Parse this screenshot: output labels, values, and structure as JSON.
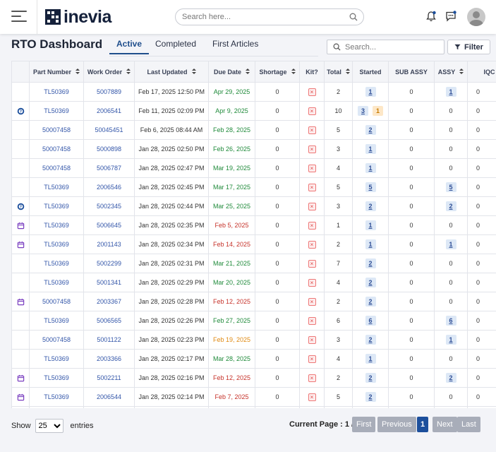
{
  "header": {
    "brand": "inevia",
    "search_placeholder": "Search here...",
    "icons": [
      "menu-icon",
      "search-icon",
      "bell-icon",
      "chat-icon",
      "avatar"
    ]
  },
  "page": {
    "title": "RTO Dashboard",
    "tabs": [
      {
        "label": "Active",
        "active": true
      },
      {
        "label": "Completed",
        "active": false
      },
      {
        "label": "First Articles",
        "active": false
      }
    ],
    "search_placeholder": "Search...",
    "filter_label": "Filter"
  },
  "table": {
    "columns": [
      "",
      "Part Number",
      "Work Order",
      "Last Updated",
      "Due Date",
      "Shortage",
      "Kit?",
      "Total",
      "Started",
      "SUB ASSY",
      "ASSY",
      "IQC"
    ],
    "rows": [
      {
        "icon": "",
        "part": "TL50369",
        "wo": "5007889",
        "updated": "Feb 17, 2025 12:50 PM",
        "due": "Apr 29, 2025",
        "due_status": "green",
        "shortage": "0",
        "total": "2",
        "started": [
          "1"
        ],
        "sub_assy": "0",
        "assy": "1",
        "assy_badge": true,
        "iqc": "0"
      },
      {
        "icon": "help",
        "part": "TL50369",
        "wo": "2006541",
        "updated": "Feb 11, 2025 02:09 PM",
        "due": "Apr 9, 2025",
        "due_status": "green",
        "shortage": "0",
        "total": "10",
        "started": [
          "3",
          "1"
        ],
        "sub_assy": "0",
        "assy": "0",
        "assy_badge": false,
        "iqc": "0"
      },
      {
        "icon": "",
        "part": "50007458",
        "wo": "50045451",
        "updated": "Feb 6, 2025 08:44 AM",
        "due": "Feb 28, 2025",
        "due_status": "green",
        "shortage": "0",
        "total": "5",
        "started": [
          "2"
        ],
        "sub_assy": "0",
        "assy": "0",
        "assy_badge": false,
        "iqc": "0"
      },
      {
        "icon": "",
        "part": "50007458",
        "wo": "5000898",
        "updated": "Jan 28, 2025 02:50 PM",
        "due": "Feb 26, 2025",
        "due_status": "green",
        "shortage": "0",
        "total": "3",
        "started": [
          "1"
        ],
        "sub_assy": "0",
        "assy": "0",
        "assy_badge": false,
        "iqc": "0"
      },
      {
        "icon": "",
        "part": "50007458",
        "wo": "5006787",
        "updated": "Jan 28, 2025 02:47 PM",
        "due": "Mar 19, 2025",
        "due_status": "green",
        "shortage": "0",
        "total": "4",
        "started": [
          "1"
        ],
        "sub_assy": "0",
        "assy": "0",
        "assy_badge": false,
        "iqc": "0"
      },
      {
        "icon": "",
        "part": "TL50369",
        "wo": "2006546",
        "updated": "Jan 28, 2025 02:45 PM",
        "due": "Mar 17, 2025",
        "due_status": "green",
        "shortage": "0",
        "total": "5",
        "started": [
          "5"
        ],
        "sub_assy": "0",
        "assy": "5",
        "assy_badge": true,
        "iqc": "0"
      },
      {
        "icon": "help",
        "part": "TL50369",
        "wo": "5002345",
        "updated": "Jan 28, 2025 02:44 PM",
        "due": "Mar 25, 2025",
        "due_status": "green",
        "shortage": "0",
        "total": "3",
        "started": [
          "2"
        ],
        "sub_assy": "0",
        "assy": "2",
        "assy_badge": true,
        "iqc": "0"
      },
      {
        "icon": "calendar",
        "part": "TL50369",
        "wo": "5006645",
        "updated": "Jan 28, 2025 02:35 PM",
        "due": "Feb 5, 2025",
        "due_status": "red",
        "shortage": "0",
        "total": "1",
        "started": [
          "1"
        ],
        "sub_assy": "0",
        "assy": "0",
        "assy_badge": false,
        "iqc": "0"
      },
      {
        "icon": "calendar",
        "part": "TL50369",
        "wo": "2001143",
        "updated": "Jan 28, 2025 02:34 PM",
        "due": "Feb 14, 2025",
        "due_status": "red",
        "shortage": "0",
        "total": "2",
        "started": [
          "1"
        ],
        "sub_assy": "0",
        "assy": "1",
        "assy_badge": true,
        "iqc": "0"
      },
      {
        "icon": "",
        "part": "TL50369",
        "wo": "5002299",
        "updated": "Jan 28, 2025 02:31 PM",
        "due": "Mar 21, 2025",
        "due_status": "green",
        "shortage": "0",
        "total": "7",
        "started": [
          "2"
        ],
        "sub_assy": "0",
        "assy": "0",
        "assy_badge": false,
        "iqc": "0"
      },
      {
        "icon": "",
        "part": "TL50369",
        "wo": "5001341",
        "updated": "Jan 28, 2025 02:29 PM",
        "due": "Mar 20, 2025",
        "due_status": "green",
        "shortage": "0",
        "total": "4",
        "started": [
          "2"
        ],
        "sub_assy": "0",
        "assy": "0",
        "assy_badge": false,
        "iqc": "0"
      },
      {
        "icon": "calendar",
        "part": "50007458",
        "wo": "2003367",
        "updated": "Jan 28, 2025 02:28 PM",
        "due": "Feb 12, 2025",
        "due_status": "red",
        "shortage": "0",
        "total": "2",
        "started": [
          "2"
        ],
        "sub_assy": "0",
        "assy": "0",
        "assy_badge": false,
        "iqc": "0"
      },
      {
        "icon": "",
        "part": "TL50369",
        "wo": "5006565",
        "updated": "Jan 28, 2025 02:26 PM",
        "due": "Feb 27, 2025",
        "due_status": "green",
        "shortage": "0",
        "total": "6",
        "started": [
          "6"
        ],
        "sub_assy": "0",
        "assy": "6",
        "assy_badge": true,
        "iqc": "0"
      },
      {
        "icon": "",
        "part": "50007458",
        "wo": "5001122",
        "updated": "Jan 28, 2025 02:23 PM",
        "due": "Feb 19, 2025",
        "due_status": "orange",
        "shortage": "0",
        "total": "3",
        "started": [
          "2"
        ],
        "sub_assy": "0",
        "assy": "1",
        "assy_badge": true,
        "iqc": "0"
      },
      {
        "icon": "",
        "part": "TL50369",
        "wo": "2003366",
        "updated": "Jan 28, 2025 02:17 PM",
        "due": "Mar 28, 2025",
        "due_status": "green",
        "shortage": "0",
        "total": "4",
        "started": [
          "1"
        ],
        "sub_assy": "0",
        "assy": "0",
        "assy_badge": false,
        "iqc": "0"
      },
      {
        "icon": "calendar",
        "part": "TL50369",
        "wo": "5002211",
        "updated": "Jan 28, 2025 02:16 PM",
        "due": "Feb 12, 2025",
        "due_status": "red",
        "shortage": "0",
        "total": "2",
        "started": [
          "2"
        ],
        "sub_assy": "0",
        "assy": "2",
        "assy_badge": true,
        "iqc": "0"
      },
      {
        "icon": "calendar",
        "part": "TL50369",
        "wo": "2006544",
        "updated": "Jan 28, 2025 02:14 PM",
        "due": "Feb 7, 2025",
        "due_status": "red",
        "shortage": "0",
        "total": "5",
        "started": [
          "2"
        ],
        "sub_assy": "0",
        "assy": "0",
        "assy_badge": false,
        "iqc": "0"
      },
      {
        "icon": "",
        "part": "",
        "wo": "",
        "updated": "",
        "due": "",
        "due_status": "green",
        "shortage": "",
        "total": "",
        "started": [],
        "sub_assy": "",
        "assy": "",
        "assy_badge": false,
        "iqc": ""
      }
    ]
  },
  "footer": {
    "show_label": "Show",
    "page_size": "25",
    "entries_label": "entries",
    "current_page_label": "Current Page : 1 / 1",
    "buttons": {
      "first": "First",
      "previous": "Previous",
      "current": "1",
      "next": "Next",
      "last": "Last"
    }
  },
  "colors": {
    "due_green": "#1f8a3a",
    "due_red": "#c6322a",
    "due_orange": "#e08a12",
    "link": "#3356a9",
    "accent": "#1c4f9c"
  }
}
